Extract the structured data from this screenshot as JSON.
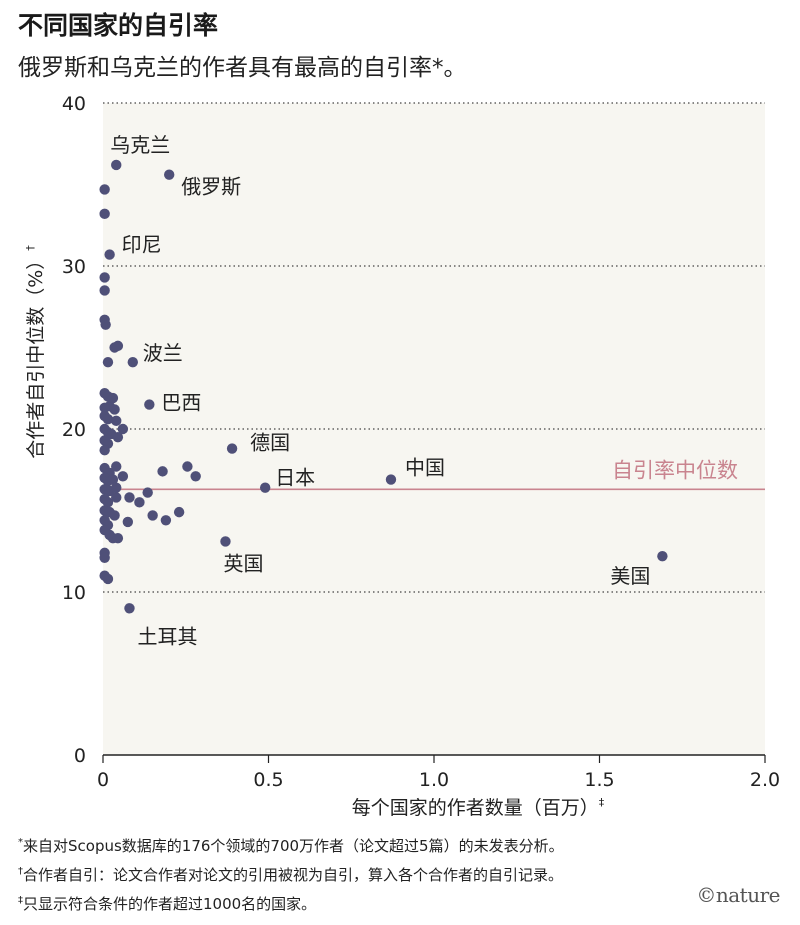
{
  "header": {
    "title": "不同国家的自引率",
    "subtitle": "俄罗斯和乌克兰的作者具有最高的自引率*。"
  },
  "chart_data": {
    "type": "scatter",
    "xlabel": "每个国家的作者数量（百万）",
    "xlabel_mark": "‡",
    "ylabel": "合作者自引中位数（%）",
    "ylabel_mark": "†",
    "xlim": [
      0,
      2.0
    ],
    "ylim": [
      0,
      40
    ],
    "x_ticks": [
      "0",
      "0.5",
      "1.0",
      "1.5",
      "2.0"
    ],
    "y_ticks": [
      "0",
      "10",
      "20",
      "30",
      "40"
    ],
    "grid": "horizontal dotted",
    "colors": {
      "point": "#4f5078",
      "median_line": "#c9848f",
      "plot_background": "#f7f6f1",
      "grid": "#444444"
    },
    "median": {
      "value": 16.3,
      "label": "自引率中位数"
    },
    "labeled_points": [
      {
        "label": "乌克兰",
        "x": 0.04,
        "y": 36.2
      },
      {
        "label": "俄罗斯",
        "x": 0.2,
        "y": 35.6
      },
      {
        "label": "印尼",
        "x": 0.02,
        "y": 30.7
      },
      {
        "label": "波兰",
        "x": 0.09,
        "y": 24.1
      },
      {
        "label": "巴西",
        "x": 0.14,
        "y": 21.5
      },
      {
        "label": "德国",
        "x": 0.39,
        "y": 18.8
      },
      {
        "label": "日本",
        "x": 0.49,
        "y": 16.4
      },
      {
        "label": "中国",
        "x": 0.87,
        "y": 16.9
      },
      {
        "label": "英国",
        "x": 0.37,
        "y": 13.1
      },
      {
        "label": "美国",
        "x": 1.69,
        "y": 12.2
      },
      {
        "label": "土耳其",
        "x": 0.08,
        "y": 9.0
      }
    ],
    "points": [
      {
        "x": 0.005,
        "y": 34.7
      },
      {
        "x": 0.005,
        "y": 33.2
      },
      {
        "x": 0.005,
        "y": 29.3
      },
      {
        "x": 0.005,
        "y": 28.5
      },
      {
        "x": 0.005,
        "y": 26.7
      },
      {
        "x": 0.008,
        "y": 26.4
      },
      {
        "x": 0.015,
        "y": 24.1
      },
      {
        "x": 0.035,
        "y": 25.0
      },
      {
        "x": 0.045,
        "y": 25.1
      },
      {
        "x": 0.005,
        "y": 22.2
      },
      {
        "x": 0.015,
        "y": 22.0
      },
      {
        "x": 0.02,
        "y": 21.4
      },
      {
        "x": 0.005,
        "y": 21.3
      },
      {
        "x": 0.03,
        "y": 21.9
      },
      {
        "x": 0.035,
        "y": 21.2
      },
      {
        "x": 0.005,
        "y": 20.8
      },
      {
        "x": 0.015,
        "y": 20.6
      },
      {
        "x": 0.04,
        "y": 20.5
      },
      {
        "x": 0.005,
        "y": 20.0
      },
      {
        "x": 0.015,
        "y": 19.8
      },
      {
        "x": 0.025,
        "y": 19.7
      },
      {
        "x": 0.045,
        "y": 19.5
      },
      {
        "x": 0.06,
        "y": 20.0
      },
      {
        "x": 0.005,
        "y": 19.3
      },
      {
        "x": 0.015,
        "y": 19.1
      },
      {
        "x": 0.005,
        "y": 18.7
      },
      {
        "x": 0.005,
        "y": 17.6
      },
      {
        "x": 0.02,
        "y": 17.3
      },
      {
        "x": 0.04,
        "y": 17.7
      },
      {
        "x": 0.005,
        "y": 17.0
      },
      {
        "x": 0.015,
        "y": 16.8
      },
      {
        "x": 0.03,
        "y": 16.9
      },
      {
        "x": 0.06,
        "y": 17.1
      },
      {
        "x": 0.005,
        "y": 16.3
      },
      {
        "x": 0.02,
        "y": 16.2
      },
      {
        "x": 0.04,
        "y": 16.4
      },
      {
        "x": 0.005,
        "y": 15.7
      },
      {
        "x": 0.015,
        "y": 15.5
      },
      {
        "x": 0.04,
        "y": 15.8
      },
      {
        "x": 0.005,
        "y": 15.0
      },
      {
        "x": 0.02,
        "y": 14.9
      },
      {
        "x": 0.035,
        "y": 14.7
      },
      {
        "x": 0.005,
        "y": 14.4
      },
      {
        "x": 0.015,
        "y": 14.1
      },
      {
        "x": 0.005,
        "y": 13.8
      },
      {
        "x": 0.02,
        "y": 13.5
      },
      {
        "x": 0.03,
        "y": 13.3
      },
      {
        "x": 0.045,
        "y": 13.3
      },
      {
        "x": 0.005,
        "y": 12.4
      },
      {
        "x": 0.005,
        "y": 12.1
      },
      {
        "x": 0.005,
        "y": 11.0
      },
      {
        "x": 0.015,
        "y": 10.8
      },
      {
        "x": 0.08,
        "y": 15.8
      },
      {
        "x": 0.11,
        "y": 15.5
      },
      {
        "x": 0.135,
        "y": 16.1
      },
      {
        "x": 0.15,
        "y": 14.7
      },
      {
        "x": 0.075,
        "y": 14.3
      },
      {
        "x": 0.19,
        "y": 14.4
      },
      {
        "x": 0.23,
        "y": 14.9
      },
      {
        "x": 0.18,
        "y": 17.4
      },
      {
        "x": 0.255,
        "y": 17.7
      },
      {
        "x": 0.28,
        "y": 17.1
      }
    ]
  },
  "footnotes": [
    {
      "mark": "*",
      "text": "来自对Scopus数据库的176个领域的700万作者（论文超过5篇）的未发表分析。"
    },
    {
      "mark": "†",
      "text": "合作者自引：论文合作者对论文的引用被视为自引，算入各个合作者的自引记录。"
    },
    {
      "mark": "‡",
      "text": "只显示符合条件的作者超过1000名的国家。"
    }
  ],
  "brand": {
    "logo": "©nature"
  }
}
